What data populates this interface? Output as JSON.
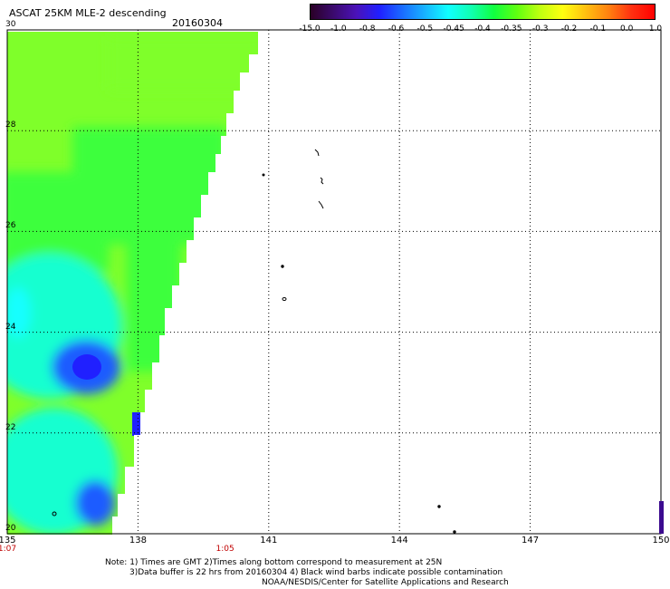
{
  "header": {
    "title": "ASCAT 25KM MLE-2 descending",
    "date": "20160304"
  },
  "colorbar": {
    "labels": [
      "-15.0",
      "-1.0",
      "-0.8",
      "-0.6",
      "-0.5",
      "-0.45",
      "-0.4",
      "-0.35",
      "-0.3",
      "-0.2",
      "-0.1",
      "0.0",
      "1.0"
    ],
    "colors": [
      "#2a0026",
      "#3b0a6e",
      "#4b12b8",
      "#2020ff",
      "#1a6cff",
      "#18b4ff",
      "#10ffff",
      "#10ffb0",
      "#10ff40",
      "#60ff10",
      "#c0ff10",
      "#ffff10",
      "#ffc010",
      "#ff8010",
      "#ff3010",
      "#ff0000"
    ]
  },
  "map": {
    "lat_labels": [
      "30",
      "28",
      "26",
      "24",
      "22",
      "20"
    ],
    "lon_labels": [
      "135",
      "138",
      "141",
      "144",
      "147",
      "150"
    ],
    "time_labels": [
      {
        "lon": 135,
        "text": "1:07"
      },
      {
        "lon": 140,
        "text": "1:05"
      }
    ],
    "colors": {
      "lime": "#7fff2a",
      "green": "#3cff3c",
      "aqua": "#18ffd0",
      "cyan": "#12ffff",
      "blue": "#1a5cff",
      "deep_blue": "#2020ff",
      "violet": "#3b0a8f"
    }
  },
  "notes": {
    "line1": "Note: 1) Times are GMT 2)Times along bottom correspond to measurement at 25N",
    "line2": "3)Data buffer is 22 hrs from 20160304 4) Black wind barbs indicate possible contamination",
    "line3": "NOAA/NESDIS/Center for Satellite Applications and Research"
  }
}
